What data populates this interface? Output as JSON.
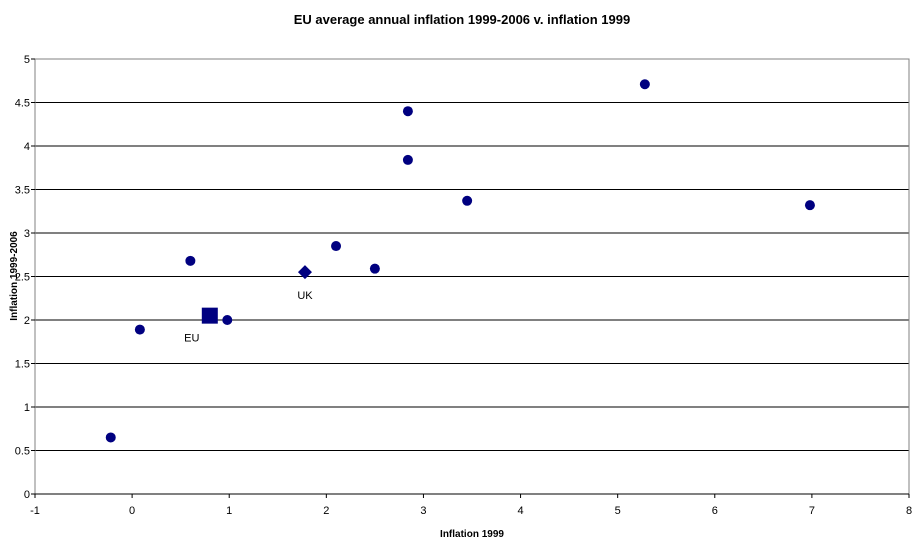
{
  "chart_data": {
    "type": "scatter",
    "title": "EU average annual inflation 1999-2006 v. inflation 1999",
    "xlabel": "Inflation 1999",
    "ylabel": "Inflation 1999-2006",
    "xlim": [
      -1,
      8
    ],
    "ylim": [
      0,
      5
    ],
    "x_ticks": [
      "-1",
      "0",
      "1",
      "2",
      "3",
      "4",
      "5",
      "6",
      "7",
      "8"
    ],
    "y_ticks": [
      "0",
      "0.5",
      "1",
      "1.5",
      "2",
      "2.5",
      "3",
      "3.5",
      "4",
      "4.5",
      "5"
    ],
    "grid": "horizontal",
    "marker_color": "#000080",
    "points": [
      {
        "x": -0.22,
        "y": 0.65
      },
      {
        "x": 0.08,
        "y": 1.89
      },
      {
        "x": 0.6,
        "y": 2.68
      },
      {
        "x": 0.98,
        "y": 2.0
      },
      {
        "x": 2.1,
        "y": 2.85
      },
      {
        "x": 2.5,
        "y": 2.59
      },
      {
        "x": 2.84,
        "y": 3.84
      },
      {
        "x": 2.84,
        "y": 4.4
      },
      {
        "x": 3.45,
        "y": 3.37
      },
      {
        "x": 5.28,
        "y": 4.71
      },
      {
        "x": 6.98,
        "y": 3.32
      }
    ],
    "highlights": [
      {
        "label": "UK",
        "marker": "diamond",
        "x": 1.78,
        "y": 2.55
      },
      {
        "label": "EU",
        "marker": "square",
        "x": 0.8,
        "y": 2.05
      }
    ]
  }
}
